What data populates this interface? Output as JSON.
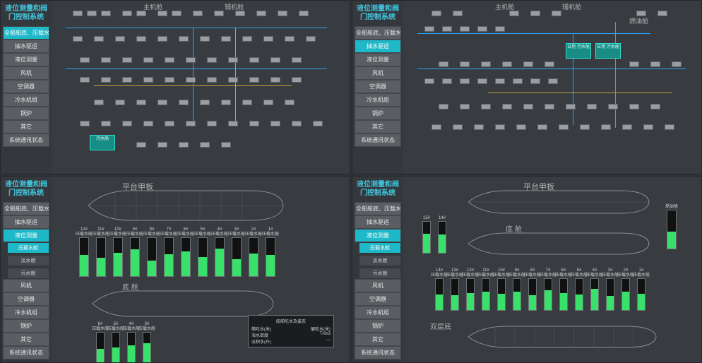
{
  "system_title": "液位测量和阀门控制系统",
  "nav": {
    "items": [
      "全船船底、压载水",
      "抽水驱运",
      "液位测量",
      "风机",
      "空调器",
      "冷水机组",
      "锅炉",
      "其它",
      "系统通讯状态"
    ]
  },
  "panel_tl": {
    "active_index": 0,
    "header_labels": {
      "main_engine": "主机舱",
      "aux_engine": "辅机舱"
    },
    "tank1": "污水舱",
    "colors": {
      "pipe_blue": "#2aa5ff",
      "pipe_yellow": "#c9a53a",
      "tank_bg": "#178d86"
    }
  },
  "panel_tr": {
    "active_index": 1,
    "header_labels": {
      "main_engine": "主机舱",
      "aux_engine": "辅机舱",
      "fuel": "燃油舱"
    },
    "tank1": "日用\n污水舱",
    "tank2": "日用\n污水舱"
  },
  "panel_bl": {
    "active_index": 2,
    "sub_items": [
      "压载水舱",
      "淡水舱",
      "污水舱"
    ],
    "sub_active": 0,
    "deck_label": "平台甲板",
    "bilge_label": "底 舱",
    "gauges_top": [
      {
        "label": "压载水舱",
        "num": "12#",
        "pct": 55
      },
      {
        "label": "压载水舱",
        "num": "11#",
        "pct": 48
      },
      {
        "label": "压载水舱",
        "num": "10#",
        "pct": 62
      },
      {
        "label": "压载水舱",
        "num": "9#",
        "pct": 70
      },
      {
        "label": "压载水舱",
        "num": "8#",
        "pct": 40
      },
      {
        "label": "压载水舱",
        "num": "7#",
        "pct": 58
      },
      {
        "label": "压载水舱",
        "num": "6#",
        "pct": 65
      },
      {
        "label": "压载水舱",
        "num": "5#",
        "pct": 50
      },
      {
        "label": "压载水舱",
        "num": "4#",
        "pct": 72
      },
      {
        "label": "压载水舱",
        "num": "3#",
        "pct": 45
      },
      {
        "label": "压载水舱",
        "num": "2#",
        "pct": 60
      },
      {
        "label": "压载水舱",
        "num": "1#",
        "pct": 55
      }
    ],
    "gauges_bottom": [
      {
        "label": "压载水舱",
        "num": "6#",
        "pct": 48
      },
      {
        "label": "压载水舱",
        "num": "5#",
        "pct": 52
      },
      {
        "label": "压载水舱",
        "num": "4#",
        "pct": 60
      },
      {
        "label": "压载水舱",
        "num": "3#",
        "pct": 66
      }
    ],
    "status": {
      "title": "船舶吃水及姿态",
      "rows": [
        [
          "艏吃水(米)",
          "艉吃水(米)"
        ],
        [
          "",
          "  "
        ],
        [
          "海水密度",
          "Trim3"
        ],
        [
          "淡积水(升)",
          "---"
        ]
      ]
    }
  },
  "panel_br": {
    "active_index": 2,
    "sub_items": [
      "压载水舱",
      "淡水舱",
      "污水舱"
    ],
    "sub_active": 0,
    "deck_label": "平台甲板",
    "bilge_label": "底 舱",
    "double_label": "双层底",
    "gauges_top_small": [
      {
        "label": "15#",
        "pct": 62
      },
      {
        "label": "14#",
        "pct": 58
      }
    ],
    "gauges_top_right": [
      {
        "label": "燃油舱",
        "pct": 45
      }
    ],
    "gauges_mid": [
      {
        "label": "14#",
        "sub": "压载水舱",
        "pct": 50
      },
      {
        "label": "13#",
        "sub": "压载水舱",
        "pct": 48
      },
      {
        "label": "12#",
        "sub": "压载水舱",
        "pct": 55
      },
      {
        "label": "11#",
        "sub": "压载水舱",
        "pct": 60
      },
      {
        "label": "10#",
        "sub": "压载水舱",
        "pct": 52
      },
      {
        "label": "9#",
        "sub": "压载水舱",
        "pct": 58
      },
      {
        "label": "8#",
        "sub": "压载水舱",
        "pct": 47
      },
      {
        "label": "7#",
        "sub": "压载水舱",
        "pct": 63
      },
      {
        "label": "6#",
        "sub": "压载水舱",
        "pct": 55
      },
      {
        "label": "5#",
        "sub": "压载水舱",
        "pct": 50
      },
      {
        "label": "4#",
        "sub": "压载水舱",
        "pct": 68
      },
      {
        "label": "3#",
        "sub": "压载水舱",
        "pct": 45
      },
      {
        "label": "2#",
        "sub": "压载水舱",
        "pct": 58
      },
      {
        "label": "1#",
        "sub": "压载水舱",
        "pct": 52
      }
    ]
  }
}
